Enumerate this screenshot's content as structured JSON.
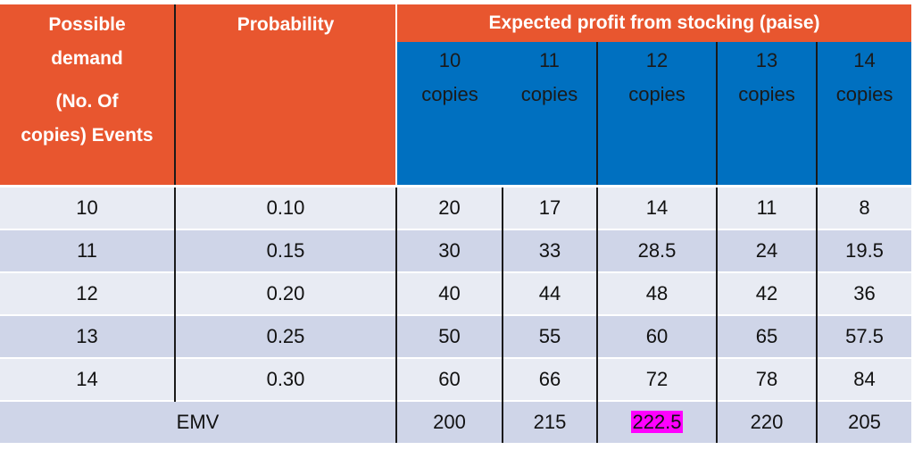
{
  "header": {
    "col1": [
      "Possible",
      "demand",
      "(No. Of",
      "copies) Events"
    ],
    "col2": "Probability",
    "group": "Expected profit from stocking (paise)",
    "stock_cols": [
      {
        "line1": "10",
        "line2": "copies"
      },
      {
        "line1": "11",
        "line2": "copies"
      },
      {
        "line1": "12",
        "line2": "copies"
      },
      {
        "line1": "13",
        "line2": "copies"
      },
      {
        "line1": "14",
        "line2": "copies"
      }
    ]
  },
  "rows": [
    {
      "demand": "10",
      "prob": "0.10",
      "values": [
        "20",
        "17",
        "14",
        "11",
        "8"
      ]
    },
    {
      "demand": "11",
      "prob": "0.15",
      "values": [
        "30",
        "33",
        "28.5",
        "24",
        "19.5"
      ]
    },
    {
      "demand": "12",
      "prob": "0.20",
      "values": [
        "40",
        "44",
        "48",
        "42",
        "36"
      ]
    },
    {
      "demand": "13",
      "prob": "0.25",
      "values": [
        "50",
        "55",
        "60",
        "65",
        "57.5"
      ]
    },
    {
      "demand": "14",
      "prob": "0.30",
      "values": [
        "60",
        "66",
        "72",
        "78",
        "84"
      ]
    }
  ],
  "emv": {
    "label": "EMV",
    "values": [
      "200",
      "215",
      "222.5",
      "220",
      "205"
    ],
    "highlight_index": 2
  },
  "colors": {
    "header_orange": "#e8562f",
    "header_blue": "#0070c0",
    "row_light": "#e8ebf3",
    "row_dark": "#cfd5e8",
    "highlight": "#ff00ff"
  }
}
